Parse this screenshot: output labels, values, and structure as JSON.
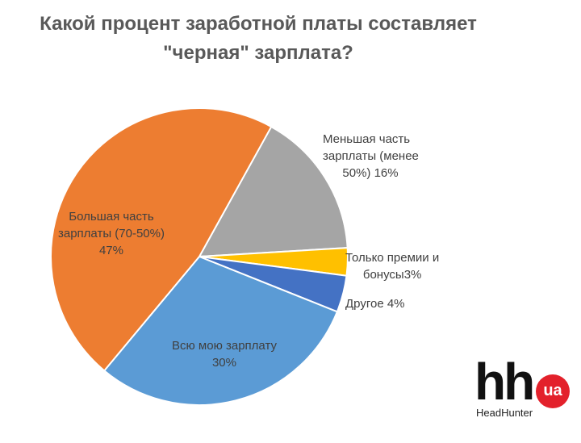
{
  "chart_data": {
    "type": "pie",
    "title_lines": [
      "Какой процент заработной платы составляет",
      "\"черная\" зарплата?"
    ],
    "slices": [
      {
        "label_lines": [
          "Меньшая часть",
          "зарплаты (менее",
          "50%)  16%"
        ],
        "value": 16,
        "color": "#A5A5A5"
      },
      {
        "label_lines": [
          "Только премии и",
          "бонусы3%"
        ],
        "value": 3,
        "color": "#FFC000"
      },
      {
        "label_lines": [
          "Другое 4%"
        ],
        "value": 4,
        "color": "#4472C4"
      },
      {
        "label_lines": [
          "Всю мою зарплату",
          "30%"
        ],
        "value": 30,
        "color": "#5B9BD5"
      },
      {
        "label_lines": [
          "Большая часть",
          "зарплаты (70-50%)",
          "47%"
        ],
        "value": 47,
        "color": "#ED7D31"
      }
    ]
  },
  "logo": {
    "mark": "hh",
    "badge": "ua",
    "name": "HeadHunter"
  }
}
